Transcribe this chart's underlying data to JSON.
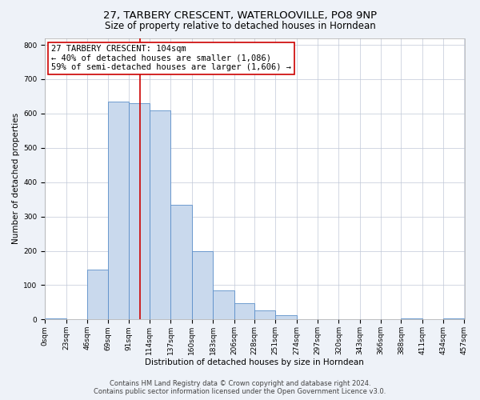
{
  "title": "27, TARBERY CRESCENT, WATERLOOVILLE, PO8 9NP",
  "subtitle": "Size of property relative to detached houses in Horndean",
  "xlabel": "Distribution of detached houses by size in Horndean",
  "ylabel": "Number of detached properties",
  "bin_edges": [
    0,
    23,
    46,
    69,
    91,
    114,
    137,
    160,
    183,
    206,
    228,
    251,
    274,
    297,
    320,
    343,
    366,
    388,
    411,
    434,
    457
  ],
  "bin_heights": [
    2,
    0,
    145,
    635,
    630,
    610,
    335,
    200,
    85,
    47,
    27,
    12,
    0,
    0,
    0,
    0,
    0,
    3,
    0,
    2
  ],
  "tick_labels": [
    "0sqm",
    "23sqm",
    "46sqm",
    "69sqm",
    "91sqm",
    "114sqm",
    "137sqm",
    "160sqm",
    "183sqm",
    "206sqm",
    "228sqm",
    "251sqm",
    "274sqm",
    "297sqm",
    "320sqm",
    "343sqm",
    "366sqm",
    "388sqm",
    "411sqm",
    "434sqm",
    "457sqm"
  ],
  "bar_color": "#c9d9ed",
  "bar_edge_color": "#5b8fc9",
  "vline_x": 104,
  "vline_color": "#cc0000",
  "ylim": [
    0,
    820
  ],
  "yticks": [
    0,
    100,
    200,
    300,
    400,
    500,
    600,
    700,
    800
  ],
  "annotation_line1": "27 TARBERY CRESCENT: 104sqm",
  "annotation_line2": "← 40% of detached houses are smaller (1,086)",
  "annotation_line3": "59% of semi-detached houses are larger (1,606) →",
  "annotation_box_color": "#ffffff",
  "annotation_box_edge_color": "#cc0000",
  "footer_line1": "Contains HM Land Registry data © Crown copyright and database right 2024.",
  "footer_line2": "Contains public sector information licensed under the Open Government Licence v3.0.",
  "title_fontsize": 9.5,
  "subtitle_fontsize": 8.5,
  "axis_label_fontsize": 7.5,
  "tick_fontsize": 6.5,
  "annotation_fontsize": 7.5,
  "footer_fontsize": 6,
  "background_color": "#eef2f8",
  "plot_background_color": "#ffffff"
}
